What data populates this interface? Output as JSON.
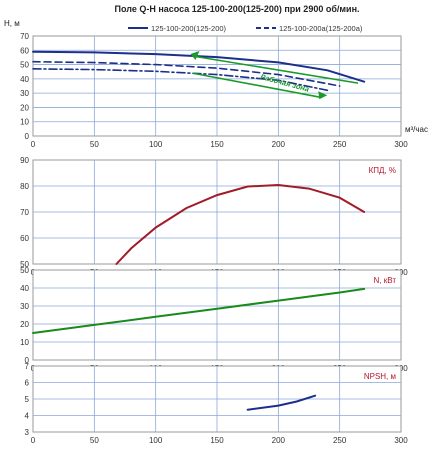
{
  "title": "Поле Q-H насоса 125-100-200(125-200) при 2900 об/мин.",
  "colors": {
    "grid": "#8aa8d8",
    "head_main": "#1c2f8a",
    "head_trim": "#1c2f8a",
    "efficiency": "#a01c28",
    "power": "#1a8a1a",
    "npsh": "#1c2f8a",
    "work_zone": "#1a9a2a",
    "panel_label": "#b5152b"
  },
  "chart_data": [
    {
      "id": "qh",
      "type": "line",
      "ylabel": "H, м",
      "xlabel": "м³/час",
      "xlim": [
        0,
        300
      ],
      "ylim": [
        0,
        70
      ],
      "xticks": [
        0,
        50,
        100,
        150,
        200,
        250,
        300
      ],
      "yticks": [
        0,
        10,
        20,
        30,
        40,
        50,
        60,
        70
      ],
      "grid": true,
      "legend_position": "top",
      "series": [
        {
          "name": "125-100-200(125-200)",
          "style": "solid",
          "color": "#1c2f8a",
          "x": [
            0,
            50,
            100,
            150,
            200,
            240,
            270
          ],
          "y": [
            59,
            58.5,
            57.3,
            55.2,
            51.5,
            46.0,
            38.0
          ]
        },
        {
          "name": "125-100-200а(125-200а)",
          "style": "dash",
          "color": "#1c2f8a",
          "x": [
            0,
            50,
            100,
            150,
            200,
            250
          ],
          "y": [
            52,
            51.4,
            50.0,
            47.5,
            43.0,
            35.0
          ]
        },
        {
          "name": "",
          "style": "dashdot",
          "color": "#1c2f8a",
          "x": [
            0,
            50,
            100,
            150,
            200,
            240
          ],
          "y": [
            47,
            46.5,
            45.3,
            43.0,
            39.0,
            32.0
          ]
        }
      ],
      "work_zone": {
        "label": "Рабочая зона",
        "upper": {
          "x": [
            130,
            265
          ],
          "y": [
            56,
            37
          ]
        },
        "lower": {
          "x": [
            130,
            235
          ],
          "y": [
            44,
            27
          ]
        },
        "arrow_at": [
          235,
          28.5
        ]
      }
    },
    {
      "id": "eff",
      "type": "line",
      "ylabel": "",
      "label": "КПД, %",
      "xlim": [
        0,
        300
      ],
      "ylim": [
        50,
        90
      ],
      "xticks": [
        0,
        50,
        100,
        150,
        200,
        250,
        300
      ],
      "yticks": [
        50,
        60,
        70,
        80,
        90
      ],
      "grid": true,
      "series": [
        {
          "name": "КПД, %",
          "style": "solid",
          "color": "#a01c28",
          "x": [
            68,
            80,
            100,
            125,
            150,
            175,
            200,
            225,
            250,
            270
          ],
          "y": [
            50,
            56,
            64,
            71.5,
            76.5,
            79.8,
            80.4,
            79.0,
            75.5,
            70.0
          ]
        }
      ]
    },
    {
      "id": "power",
      "type": "line",
      "ylabel": "",
      "label": "N, кВт",
      "xlim": [
        0,
        300
      ],
      "ylim": [
        0,
        50
      ],
      "xticks": [
        0,
        50,
        100,
        150,
        200,
        250,
        300
      ],
      "yticks": [
        0,
        10,
        20,
        30,
        40,
        50
      ],
      "grid": true,
      "series": [
        {
          "name": "N, кВт",
          "style": "solid",
          "color": "#1a8a1a",
          "x": [
            0,
            50,
            100,
            150,
            200,
            250,
            270
          ],
          "y": [
            15.0,
            19.5,
            24.0,
            28.5,
            33.0,
            37.5,
            39.5
          ]
        }
      ]
    },
    {
      "id": "npsh",
      "type": "line",
      "ylabel": "",
      "label": "NPSH, м",
      "xlim": [
        0,
        300
      ],
      "ylim": [
        3,
        7
      ],
      "xticks": [
        0,
        50,
        100,
        150,
        200,
        250,
        300
      ],
      "yticks": [
        3,
        4,
        5,
        6,
        7
      ],
      "grid": true,
      "series": [
        {
          "name": "NPSH, м",
          "style": "solid",
          "color": "#1c2f8a",
          "x": [
            175,
            200,
            215,
            230
          ],
          "y": [
            4.35,
            4.6,
            4.85,
            5.2
          ]
        }
      ]
    }
  ]
}
